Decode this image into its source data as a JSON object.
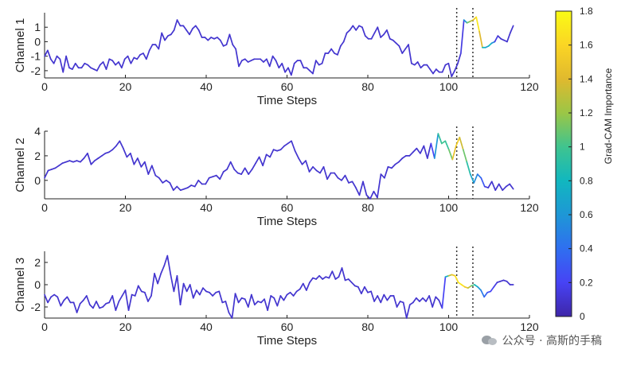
{
  "chart_data": {
    "type": "line",
    "x_label": "Time Steps",
    "xlim": [
      0,
      120
    ],
    "x_ticks": [
      0,
      20,
      40,
      60,
      80,
      100,
      120
    ],
    "highlight_window": [
      102,
      106
    ],
    "colorbar": {
      "label": "Grad-CAM Importance",
      "range": [
        0,
        1.8
      ],
      "ticks": [
        0,
        0.2,
        0.4,
        0.6,
        0.8,
        1,
        1.2,
        1.4,
        1.6,
        1.8
      ],
      "colors": [
        "#3e26a8",
        "#4743f5",
        "#2f6ff0",
        "#1e97d6",
        "#11b7bf",
        "#3fc48f",
        "#9bc646",
        "#e0b92e",
        "#fbd524",
        "#f9fb15"
      ]
    },
    "channels": [
      {
        "y_label": "Channel 1",
        "ylim": [
          -2.5,
          2
        ],
        "y_ticks": [
          -2,
          -1,
          0,
          1
        ],
        "values": [
          -1.0,
          -0.6,
          -1.2,
          -1.5,
          -1.0,
          -1.2,
          -2.1,
          -1.0,
          -1.8,
          -1.9,
          -1.5,
          -1.8,
          -1.8,
          -1.5,
          -1.6,
          -1.8,
          -1.9,
          -2.0,
          -1.6,
          -1.4,
          -1.9,
          -1.2,
          -1.3,
          -1.6,
          -1.4,
          -1.8,
          -1.2,
          -1.0,
          -1.5,
          -1.1,
          -1.2,
          -0.9,
          -0.8,
          -1.2,
          -0.6,
          -0.2,
          -0.2,
          -0.5,
          0.6,
          0.1,
          0.4,
          0.5,
          0.8,
          1.5,
          1.1,
          1.1,
          0.8,
          0.5,
          0.9,
          1.1,
          0.8,
          0.3,
          0.3,
          0.1,
          0.3,
          0.2,
          0.3,
          0.1,
          -0.3,
          -0.2,
          0.5,
          -0.2,
          -0.5,
          -1.7,
          -1.3,
          -1.2,
          -1.4,
          -1.3,
          -1.2,
          -1.2,
          -1.2,
          -1.4,
          -1.2,
          -1.7,
          -1.0,
          -1.3,
          -1.8,
          -1.5,
          -2.1,
          -1.8,
          -2.3,
          -1.5,
          -1.3,
          -1.3,
          -1.8,
          -1.8,
          -2.0,
          -2.2,
          -1.3,
          -1.6,
          -1.5,
          -0.8,
          -0.8,
          -0.5,
          -0.8,
          -0.9,
          -0.3,
          0.0,
          0.6,
          0.8,
          1.1,
          0.8,
          1.1,
          1.0,
          0.4,
          0.2,
          0.2,
          0.6,
          1.0,
          0.3,
          0.5,
          0.8,
          0.2,
          0.1,
          -0.1,
          -0.3,
          -0.8,
          -0.5,
          -0.2,
          -1.5,
          -1.6,
          -1.4,
          -1.8,
          -1.6,
          -1.6,
          -1.9,
          -2.2,
          -1.9,
          -2.1,
          -2.1,
          -1.6,
          -1.5,
          -2.4,
          -2.0,
          -1.5,
          -0.8,
          1.5,
          1.3,
          1.4,
          1.5,
          1.7,
          0.7,
          -0.4,
          -0.4,
          -0.3,
          -0.1,
          0.0,
          0.4,
          0.2,
          0.1,
          0.0,
          0.6,
          1.1
        ],
        "importance": [
          0.1,
          0.1,
          0.1,
          0.1,
          0.1,
          0.1,
          0.1,
          0.1,
          0.1,
          0.1,
          0.1,
          0.1,
          0.1,
          0.1,
          0.1,
          0.1,
          0.1,
          0.1,
          0.1,
          0.1,
          0.1,
          0.1,
          0.1,
          0.1,
          0.1,
          0.1,
          0.1,
          0.1,
          0.1,
          0.1,
          0.1,
          0.1,
          0.1,
          0.1,
          0.1,
          0.1,
          0.1,
          0.1,
          0.1,
          0.1,
          0.1,
          0.1,
          0.1,
          0.1,
          0.1,
          0.1,
          0.1,
          0.1,
          0.1,
          0.1,
          0.1,
          0.1,
          0.1,
          0.1,
          0.1,
          0.1,
          0.1,
          0.1,
          0.1,
          0.1,
          0.1,
          0.1,
          0.1,
          0.1,
          0.1,
          0.1,
          0.1,
          0.1,
          0.1,
          0.1,
          0.1,
          0.1,
          0.1,
          0.1,
          0.1,
          0.1,
          0.1,
          0.1,
          0.1,
          0.1,
          0.1,
          0.1,
          0.1,
          0.1,
          0.1,
          0.1,
          0.1,
          0.1,
          0.1,
          0.1,
          0.1,
          0.1,
          0.1,
          0.1,
          0.1,
          0.1,
          0.1,
          0.1,
          0.1,
          0.1,
          0.1,
          0.1,
          0.1,
          0.1,
          0.1,
          0.1,
          0.1,
          0.1,
          0.1,
          0.1,
          0.1,
          0.1,
          0.1,
          0.1,
          0.1,
          0.1,
          0.1,
          0.1,
          0.1,
          0.1,
          0.1,
          0.1,
          0.1,
          0.1,
          0.1,
          0.1,
          0.1,
          0.1,
          0.1,
          0.1,
          0.1,
          0.1,
          0.1,
          0.1,
          0.1,
          0.1,
          0.2,
          1.0,
          1.2,
          1.4,
          1.6,
          1.8,
          1.0,
          0.6,
          0.7,
          0.9,
          0.2,
          0.1,
          0.1,
          0.1,
          0.1,
          0.1,
          0.1,
          0.1
        ]
      },
      {
        "y_label": "Channel 2",
        "ylim": [
          -1.5,
          4
        ],
        "y_ticks": [
          0,
          2,
          4
        ],
        "values": [
          0.2,
          0.8,
          0.9,
          1.0,
          1.2,
          1.4,
          1.5,
          1.6,
          1.5,
          1.6,
          1.5,
          1.8,
          2.2,
          1.3,
          1.6,
          1.8,
          2.0,
          2.2,
          2.3,
          2.5,
          2.8,
          3.2,
          2.6,
          1.9,
          2.2,
          1.3,
          1.8,
          1.1,
          1.5,
          0.5,
          1.2,
          0.4,
          0.2,
          -0.2,
          0.0,
          -0.2,
          -0.8,
          -0.5,
          -0.8,
          -0.7,
          -0.6,
          -0.4,
          -0.5,
          0.0,
          -0.3,
          -0.3,
          0.2,
          0.3,
          0.4,
          0.1,
          0.7,
          0.9,
          1.5,
          0.9,
          0.6,
          0.5,
          1.0,
          0.5,
          0.9,
          1.4,
          1.9,
          1.2,
          2.1,
          1.9,
          2.5,
          2.4,
          2.5,
          2.8,
          3.0,
          3.2,
          2.4,
          1.8,
          1.3,
          1.6,
          0.7,
          1.1,
          0.8,
          0.6,
          1.1,
          0.1,
          0.6,
          0.6,
          0.2,
          0.0,
          0.4,
          -0.2,
          -0.1,
          -0.6,
          -1.2,
          -0.1,
          -1.2,
          -1.5,
          -0.9,
          -1.4,
          0.5,
          0.2,
          1.1,
          1.0,
          1.3,
          1.5,
          1.8,
          2.0,
          2.0,
          2.3,
          2.6,
          2.2,
          2.8,
          1.8,
          3.0,
          1.8,
          3.8,
          3.0,
          3.2,
          2.5,
          1.7,
          2.8,
          3.5,
          2.5,
          1.5,
          0.5,
          -0.2,
          0.5,
          0.2,
          -0.5,
          -0.6,
          -0.1,
          -0.8,
          -0.3,
          -0.8,
          -0.5,
          -0.3,
          -0.7
        ],
        "importance": [
          0.1,
          0.1,
          0.1,
          0.1,
          0.1,
          0.1,
          0.1,
          0.1,
          0.1,
          0.1,
          0.1,
          0.1,
          0.1,
          0.1,
          0.1,
          0.1,
          0.1,
          0.1,
          0.1,
          0.1,
          0.1,
          0.1,
          0.1,
          0.1,
          0.1,
          0.1,
          0.1,
          0.1,
          0.1,
          0.1,
          0.1,
          0.1,
          0.1,
          0.1,
          0.1,
          0.1,
          0.1,
          0.1,
          0.1,
          0.1,
          0.1,
          0.1,
          0.1,
          0.1,
          0.1,
          0.1,
          0.1,
          0.1,
          0.1,
          0.1,
          0.1,
          0.1,
          0.1,
          0.1,
          0.1,
          0.1,
          0.1,
          0.1,
          0.1,
          0.1,
          0.1,
          0.1,
          0.1,
          0.1,
          0.1,
          0.1,
          0.1,
          0.1,
          0.1,
          0.1,
          0.1,
          0.1,
          0.1,
          0.1,
          0.1,
          0.1,
          0.1,
          0.1,
          0.1,
          0.1,
          0.1,
          0.1,
          0.1,
          0.1,
          0.1,
          0.1,
          0.1,
          0.1,
          0.1,
          0.1,
          0.1,
          0.1,
          0.1,
          0.1,
          0.1,
          0.1,
          0.1,
          0.1,
          0.1,
          0.1,
          0.1,
          0.1,
          0.1,
          0.1,
          0.1,
          0.1,
          0.1,
          0.1,
          0.1,
          0.3,
          0.9,
          1.0,
          1.0,
          0.9,
          1.3,
          1.6,
          1.5,
          1.2,
          1.0,
          0.8,
          0.6,
          0.5,
          0.4,
          0.2,
          0.1,
          0.1,
          0.1,
          0.1,
          0.1,
          0.1,
          0.1,
          0.1
        ]
      },
      {
        "y_label": "Channel 3",
        "ylim": [
          -3,
          3
        ],
        "y_ticks": [
          -2,
          0,
          2
        ],
        "values": [
          -0.9,
          -1.6,
          -1.1,
          -0.9,
          -1.1,
          -1.9,
          -1.4,
          -1.1,
          -1.6,
          -1.6,
          -2.5,
          -1.7,
          -1.4,
          -1.0,
          -1.8,
          -2.1,
          -1.5,
          -2.1,
          -2.0,
          -1.7,
          -1.6,
          -1.0,
          -2.3,
          -1.5,
          -1.0,
          -0.5,
          -2.3,
          -0.9,
          -1.0,
          -0.1,
          -0.6,
          -0.7,
          -1.5,
          -1.0,
          1.0,
          0.1,
          1.0,
          1.7,
          2.6,
          0.9,
          -0.6,
          0.8,
          -1.8,
          0.1,
          -0.6,
          0.0,
          -1.2,
          -0.5,
          -0.9,
          -0.3,
          -0.6,
          -0.7,
          -1.0,
          -0.7,
          -0.6,
          -1.6,
          -1.5,
          -2.5,
          -3.0,
          -0.8,
          -1.6,
          -1.2,
          -1.3,
          -2.0,
          -0.9,
          -1.8,
          -1.5,
          -1.6,
          -1.3,
          -2.3,
          -1.0,
          -1.2,
          -1.9,
          -1.0,
          -1.4,
          -0.9,
          -0.7,
          -1.0,
          -0.6,
          -0.4,
          0.1,
          -0.5,
          0.2,
          0.6,
          0.5,
          0.8,
          0.5,
          0.7,
          0.6,
          1.2,
          0.5,
          0.7,
          1.5,
          0.4,
          0.5,
          0.2,
          -0.1,
          -0.2,
          -0.8,
          -0.2,
          -0.7,
          -0.6,
          -1.5,
          -1.0,
          -1.6,
          -0.9,
          -1.4,
          -1.0,
          -1.0,
          -2.0,
          -1.5,
          -1.6,
          -3.0,
          -1.8,
          -1.6,
          -1.2,
          -1.5,
          -1.2,
          -1.5,
          -1.0,
          -2.0,
          -1.1,
          -1.4,
          -2.1,
          0.7,
          0.8,
          0.9,
          0.8,
          0.2,
          0.0,
          -0.2,
          -0.3,
          -0.1,
          0.0,
          -0.2,
          -0.5,
          -1.1,
          -0.7,
          -0.6,
          -0.2,
          0.2,
          0.3,
          0.4,
          0.3,
          0.0,
          0.0
        ],
        "importance": [
          0.1,
          0.1,
          0.1,
          0.1,
          0.1,
          0.1,
          0.1,
          0.1,
          0.1,
          0.1,
          0.1,
          0.1,
          0.1,
          0.1,
          0.1,
          0.1,
          0.1,
          0.1,
          0.1,
          0.1,
          0.1,
          0.1,
          0.1,
          0.1,
          0.1,
          0.1,
          0.1,
          0.1,
          0.1,
          0.1,
          0.1,
          0.1,
          0.1,
          0.1,
          0.1,
          0.1,
          0.1,
          0.1,
          0.1,
          0.1,
          0.1,
          0.1,
          0.1,
          0.1,
          0.1,
          0.1,
          0.1,
          0.1,
          0.1,
          0.1,
          0.1,
          0.1,
          0.1,
          0.1,
          0.1,
          0.1,
          0.1,
          0.1,
          0.1,
          0.1,
          0.1,
          0.1,
          0.1,
          0.1,
          0.1,
          0.1,
          0.1,
          0.1,
          0.1,
          0.1,
          0.1,
          0.1,
          0.1,
          0.1,
          0.1,
          0.1,
          0.1,
          0.1,
          0.1,
          0.1,
          0.1,
          0.1,
          0.1,
          0.1,
          0.1,
          0.1,
          0.1,
          0.1,
          0.1,
          0.1,
          0.1,
          0.1,
          0.1,
          0.1,
          0.1,
          0.1,
          0.1,
          0.1,
          0.1,
          0.1,
          0.1,
          0.1,
          0.1,
          0.1,
          0.1,
          0.1,
          0.1,
          0.1,
          0.1,
          0.1,
          0.1,
          0.1,
          0.1,
          0.1,
          0.1,
          0.1,
          0.1,
          0.1,
          0.1,
          0.1,
          0.1,
          0.1,
          0.1,
          0.1,
          0.3,
          1.2,
          1.4,
          1.6,
          1.7,
          1.7,
          1.6,
          1.4,
          1.2,
          0.9,
          0.7,
          0.5,
          0.4,
          0.3,
          0.2,
          0.2,
          0.1,
          0.1,
          0.1,
          0.1,
          0.1,
          0.1
        ]
      }
    ]
  },
  "watermark": {
    "text": "公众号 · 高斯的手稿"
  }
}
